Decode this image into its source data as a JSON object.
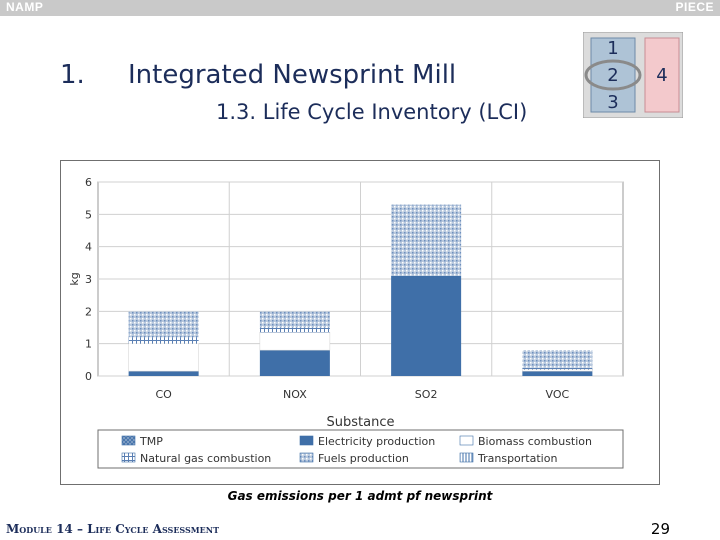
{
  "header": {
    "left": "NAMP",
    "right": "PIECE"
  },
  "slide": {
    "number": "1.",
    "title": "Integrated Newsprint Mill",
    "subtitle": "1.3. Life Cycle Inventory (LCI)"
  },
  "nav": {
    "items": [
      "1",
      "2",
      "3",
      "4"
    ],
    "active": "2"
  },
  "caption": "Gas emissions per 1 admt pf newsprint",
  "footer": "Module 14 – Life Cycle Assessment",
  "page_number": "29",
  "colors": {
    "header_bg": "#c9c9c9",
    "title_text": "#1c2d5a",
    "nav_box_pink": "#f3c9cc",
    "nav_box_blue": "#aec3d6",
    "nav_ring": "#8a8a8a",
    "electricity": "#3f6fa8",
    "hatch_blue": "#93aacb"
  },
  "chart_data": {
    "type": "bar",
    "stacked": true,
    "categories": [
      "CO",
      "NOX",
      "SO2",
      "VOC"
    ],
    "xlabel": "Substance",
    "ylabel": "kg",
    "ylim": [
      0,
      6
    ],
    "yticks": [
      0,
      1,
      2,
      3,
      4,
      5,
      6
    ],
    "grid": true,
    "legend_position": "bottom",
    "series": [
      {
        "name": "TMP",
        "values": [
          0,
          0,
          0,
          0
        ],
        "pattern": "crosshatch"
      },
      {
        "name": "Electricity production",
        "values": [
          0.15,
          0.8,
          3.1,
          0.15
        ],
        "pattern": "solid"
      },
      {
        "name": "Biomass combustion",
        "values": [
          0.85,
          0.55,
          0,
          0.05
        ],
        "pattern": "none"
      },
      {
        "name": "Natural gas combustion",
        "values": [
          0.2,
          0.15,
          0,
          0.05
        ],
        "pattern": "grid"
      },
      {
        "name": "Fuels production",
        "values": [
          0.8,
          0.5,
          2.2,
          0.55
        ],
        "pattern": "dotted"
      },
      {
        "name": "Transportation",
        "values": [
          0,
          0,
          0,
          0
        ],
        "pattern": "vertical"
      }
    ]
  }
}
